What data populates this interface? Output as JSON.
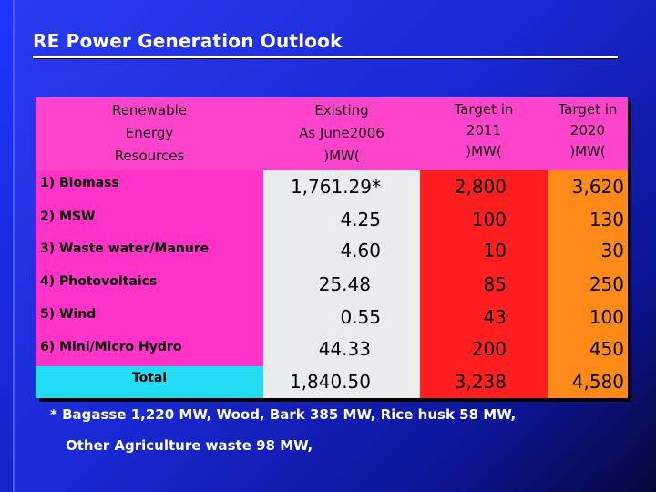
{
  "title": "RE Power Generation Outlook",
  "headers": {
    "resources": [
      "Renewable",
      "Energy",
      "Resources"
    ],
    "existing": [
      "Existing",
      "As June2006",
      ")MW("
    ],
    "target2011": [
      "Target in",
      "2011",
      ")MW("
    ],
    "target2020": [
      "Target in",
      "2020",
      ")MW("
    ]
  },
  "rows": [
    {
      "label": "1) Biomass",
      "existing": "1,761.29*",
      "t2011": "2,800",
      "t2020": "3,620"
    },
    {
      "label": "2) MSW",
      "existing": "4.25",
      "t2011": "100",
      "t2020": "130"
    },
    {
      "label": "3) Waste water/Manure",
      "existing": "4.60",
      "t2011": "10",
      "t2020": "30"
    },
    {
      "label": "4) Photovoltaics",
      "existing": "25.48",
      "t2011": "85",
      "t2020": "250"
    },
    {
      "label": "5) Wind",
      "existing": "0.55",
      "t2011": "43",
      "t2020": "100"
    },
    {
      "label": "6) Mini/Micro Hydro",
      "existing": "44.33",
      "t2011": "200",
      "t2020": "450"
    }
  ],
  "total": {
    "label": "Total",
    "existing": "1,840.50",
    "t2011": "3,238",
    "t2020": "4,580"
  },
  "footnote": {
    "line1": "* Bagasse 1,220 MW, Wood, Bark 385 MW, Rice husk 58 MW,",
    "line2": "Other Agriculture waste 98 MW,"
  },
  "colors": {
    "background": "#1a2ad8",
    "resources_column": "#ff33c8",
    "existing_column": "#e8ecec",
    "target2011_column": "#ff1f1f",
    "target2020_column": "#ff8a18",
    "total_cell": "#22ddf2"
  }
}
